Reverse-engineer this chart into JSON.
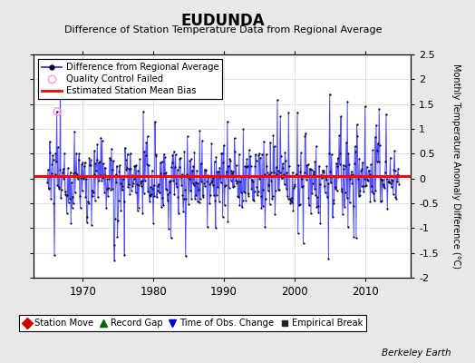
{
  "title": "EUDUNDA",
  "subtitle": "Difference of Station Temperature Data from Regional Average",
  "ylabel": "Monthly Temperature Anomaly Difference (°C)",
  "ylim": [
    -2,
    2.5
  ],
  "yticks": [
    -2,
    -1.5,
    -1,
    -0.5,
    0,
    0.5,
    1,
    1.5,
    2,
    2.5
  ],
  "xticks": [
    1970,
    1980,
    1990,
    2000,
    2010
  ],
  "xlim": [
    1963.0,
    2016.5
  ],
  "bias_value": 0.05,
  "bias_color": "#ff0000",
  "line_color": "#3333ff",
  "fill_color": "#aaaaff",
  "dot_color": "#000000",
  "qc_color": "#ff99cc",
  "bg_color": "#e8e8e8",
  "plot_bg": "#ffffff",
  "grid_color": "#cccccc",
  "watermark": "Berkeley Earth",
  "random_seed": 12345
}
